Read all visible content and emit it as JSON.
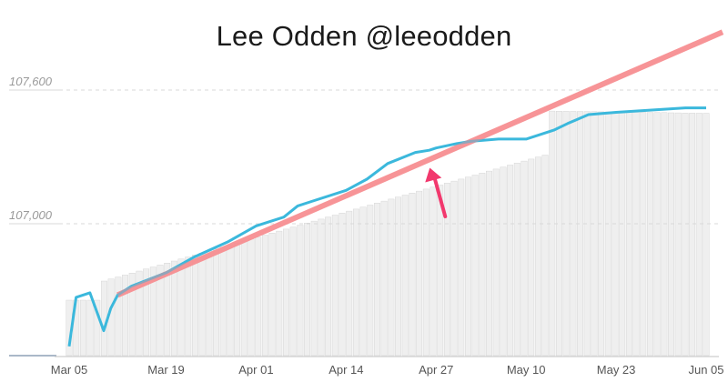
{
  "chart_data": {
    "type": "line",
    "title": "Lee Odden @leeodden",
    "xlabel": "",
    "ylabel": "",
    "x_ticks": [
      "Mar 05",
      "Mar 19",
      "Apr 01",
      "Apr 14",
      "Apr 27",
      "May 10",
      "May 23",
      "Jun 05"
    ],
    "y_ticks": [
      {
        "value": 107600,
        "label": "107,600"
      },
      {
        "value": 107000,
        "label": "107,000"
      }
    ],
    "ylim": [
      106400,
      107800
    ],
    "grid": true,
    "bars": {
      "description_free": true,
      "count": 92
    },
    "series": [
      {
        "name": "",
        "color": "#3bb8dc",
        "x": [
          "Mar 05",
          "Mar 06",
          "Mar 08",
          "Mar 10",
          "Mar 11",
          "Mar 12",
          "Mar 14",
          "Mar 19",
          "Mar 23",
          "Mar 28",
          "Apr 01",
          "Apr 05",
          "Apr 07",
          "Apr 09",
          "Apr 14",
          "Apr 17",
          "Apr 20",
          "Apr 24",
          "Apr 26",
          "Apr 27",
          "Apr 30",
          "May 02",
          "May 06",
          "May 10",
          "May 14",
          "May 16",
          "May 19",
          "May 23",
          "Jun 02",
          "Jun 05"
        ],
        "values": [
          106450,
          106670,
          106690,
          106520,
          106620,
          106680,
          106720,
          106780,
          106850,
          106920,
          106990,
          107030,
          107080,
          107100,
          107150,
          107200,
          107270,
          107320,
          107330,
          107340,
          107360,
          107370,
          107380,
          107380,
          107420,
          107450,
          107490,
          107500,
          107520,
          107520
        ]
      },
      {
        "name": "",
        "color": "#f78f92",
        "x": [
          "Mar 12",
          "Jun 05"
        ],
        "values": [
          106680,
          107860
        ]
      }
    ],
    "annotations": [
      {
        "type": "arrow",
        "color": "#f2386d",
        "points_to": "Apr 27"
      }
    ]
  },
  "ui": {
    "gridline_color": "#d8d8d8",
    "bar_color": "#efefef",
    "bar_stroke": "#cfcfcf",
    "axis_color": "#c0c0c0"
  }
}
